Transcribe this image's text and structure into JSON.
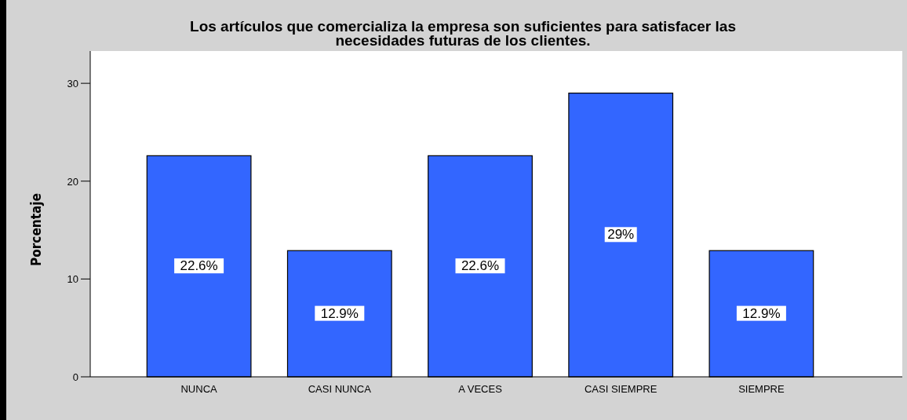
{
  "chart_data": {
    "type": "bar",
    "title": "Los artículos que comercializa la empresa son suficientes para satisfacer las\nnecesidades futuras de los clientes.",
    "ylabel": "Porcentaje",
    "categories": [
      "NUNCA",
      "CASI NUNCA",
      "A VECES",
      "CASI SIEMPRE",
      "SIEMPRE"
    ],
    "values": [
      22.6,
      12.9,
      22.6,
      29,
      12.9
    ],
    "value_labels": [
      "22.6%",
      "12.9%",
      "22.6%",
      "29%",
      "12.9%"
    ],
    "color": "#3366ff",
    "ylim": [
      0,
      33.3
    ],
    "yticks": [
      0,
      10,
      20,
      30
    ]
  }
}
